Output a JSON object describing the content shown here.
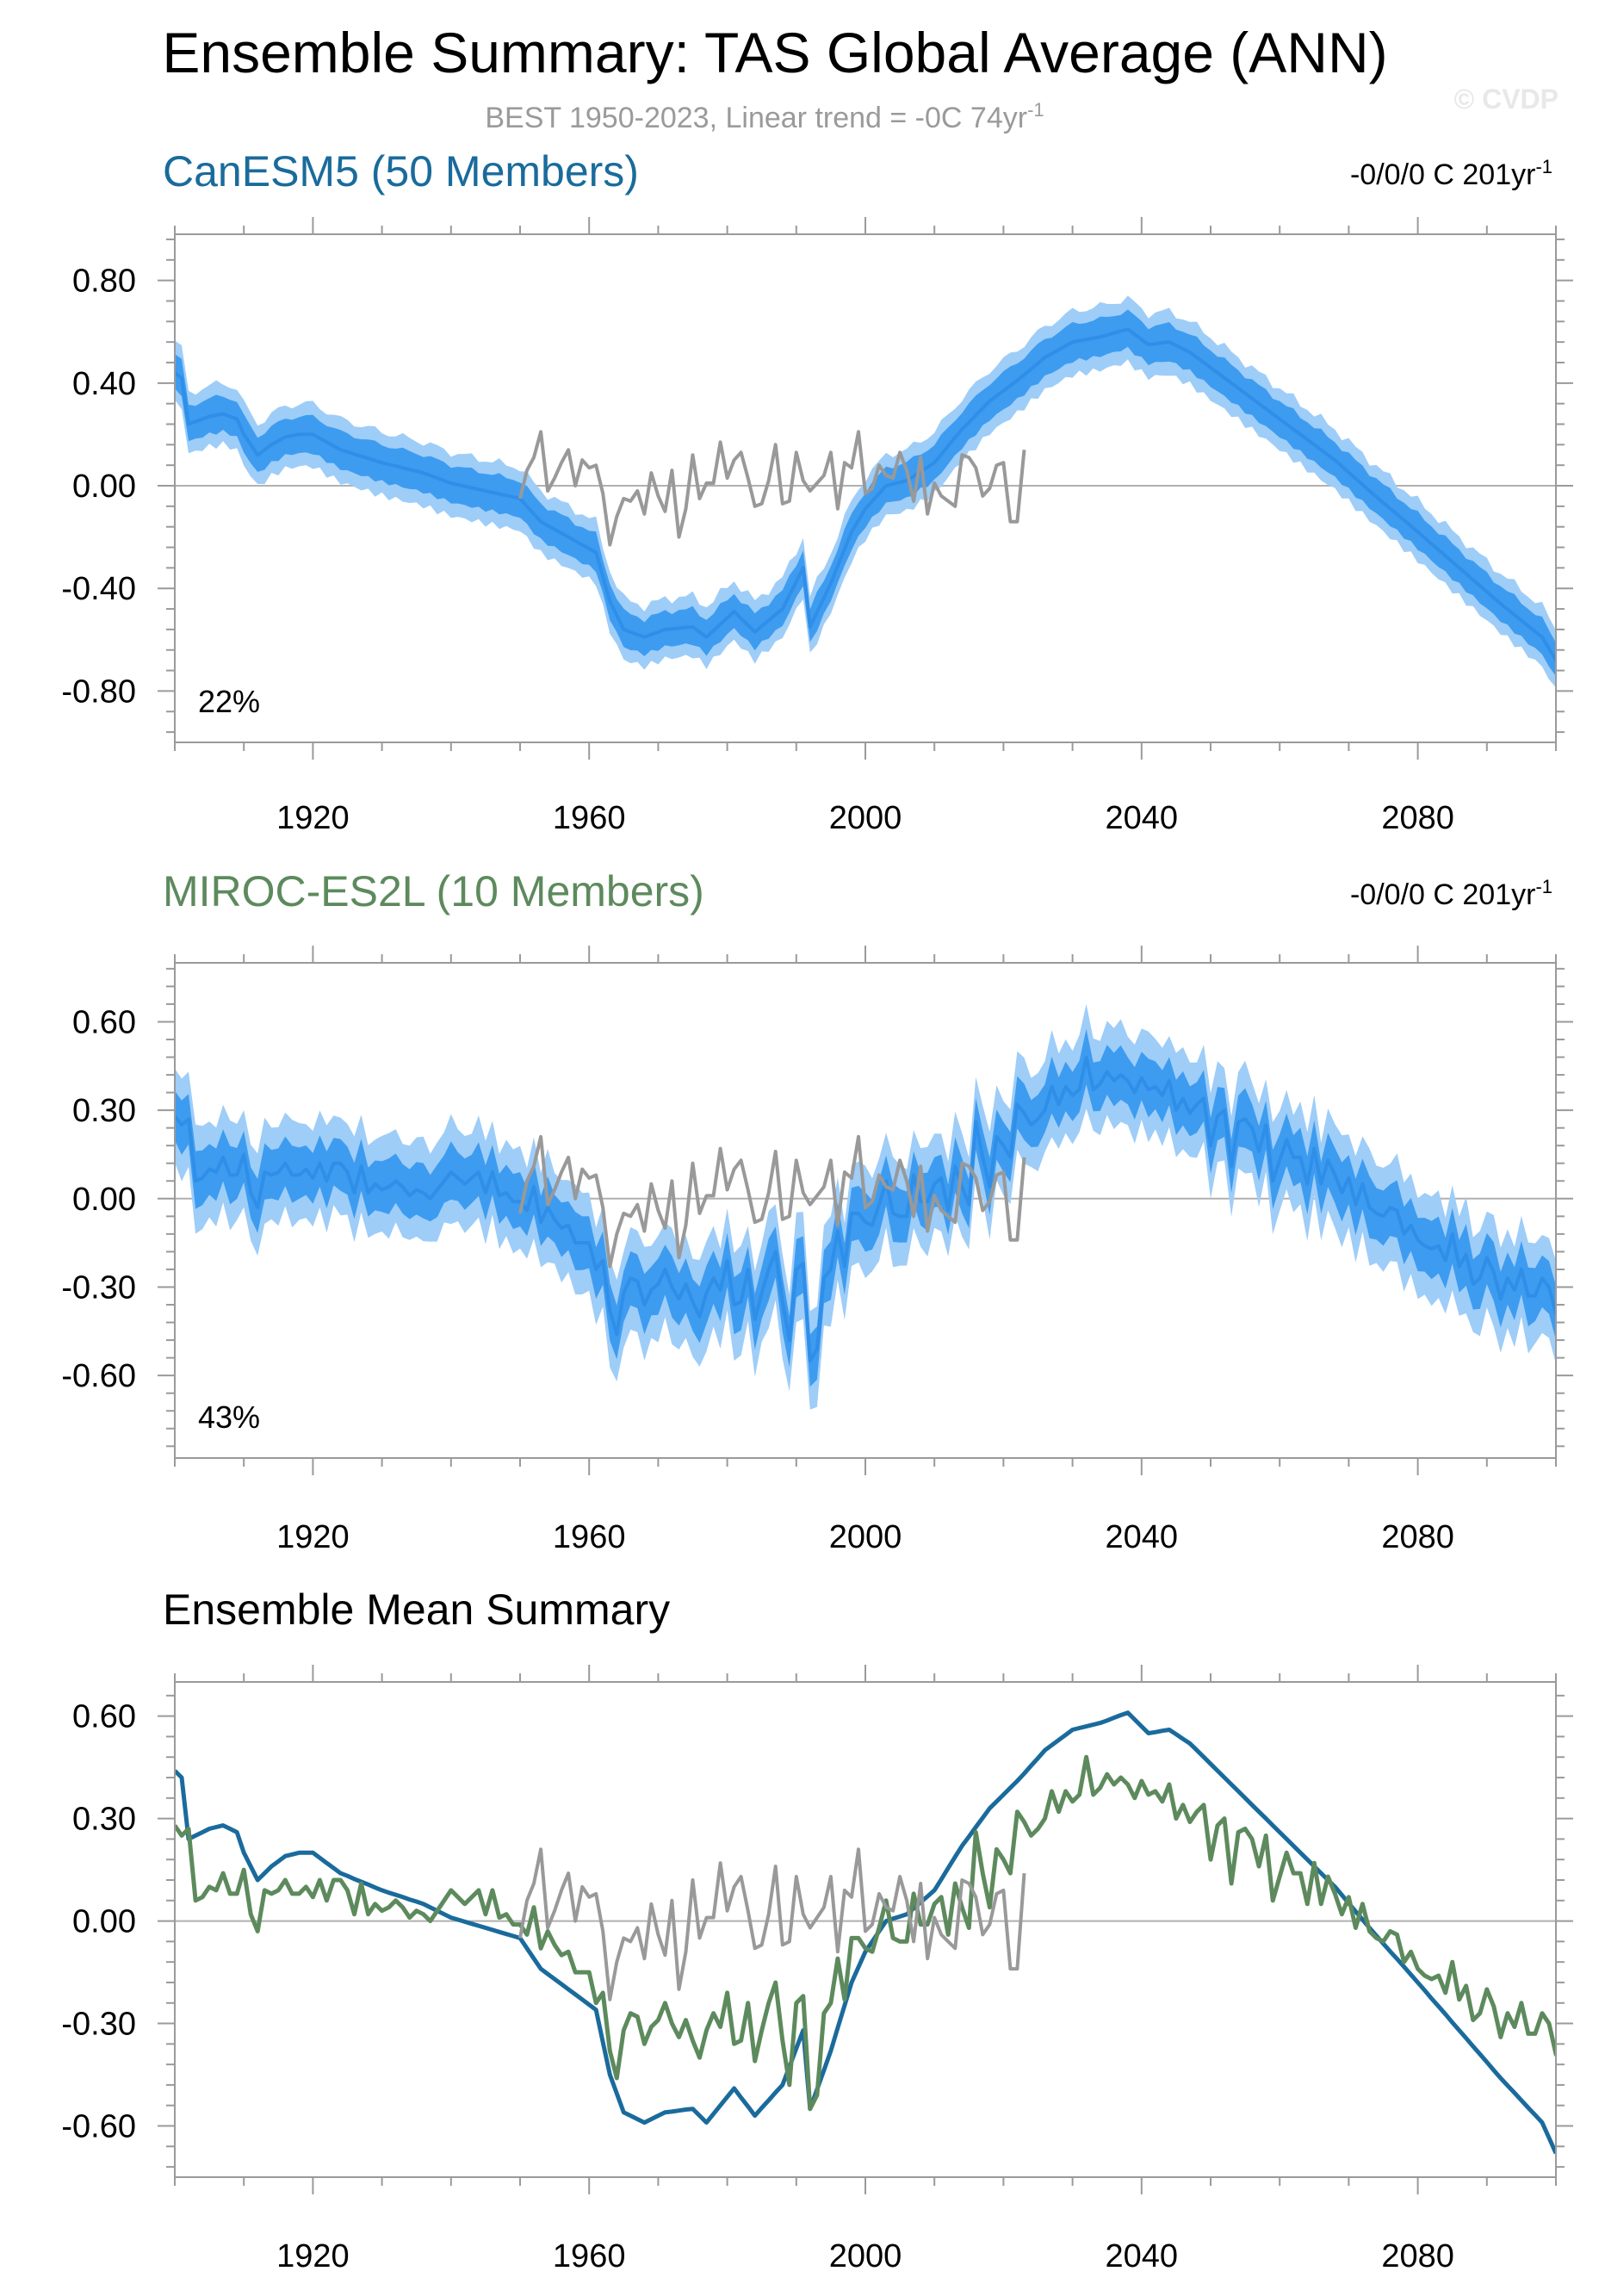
{
  "page": {
    "title": "Ensemble Summary: TAS Global Average (ANN)",
    "subtitle": "BEST 1950-2023, Linear trend = -0C 74yr",
    "subtitle_sup": "-1",
    "copyright": "© CVDP"
  },
  "colors": {
    "canesm5": "#1a6b9c",
    "miroc": "#5d8a5d",
    "obs": "#999999",
    "band_outer": "#9ecdf8",
    "band_inner": "#3d9cf0",
    "ens_mean": "#2f8ee8",
    "zero_line": "#b0b0b0",
    "frame": "#9a9a9a"
  },
  "chart_data": [
    {
      "type": "area",
      "panel_title": "CanESM5 (50 Members)",
      "trend_label": "-0/0/0 C 201yr",
      "trend_sup": "-1",
      "percent_label": "22%",
      "xlim": [
        1900,
        2100
      ],
      "ylim": [
        -1.0,
        0.98
      ],
      "yticks": [
        -0.8,
        -0.4,
        0.0,
        0.4,
        0.8
      ],
      "ytick_labels": [
        "-0.80",
        "-0.40",
        "0.00",
        "0.40",
        "0.80"
      ],
      "xticks": [
        1920,
        1960,
        2000,
        2040,
        2080
      ],
      "xtick_labels": [
        "1920",
        "1960",
        "2000",
        "2040",
        "2080"
      ],
      "series": [
        {
          "role": "ensemble_mean",
          "mean_knots": [
            [
              1900,
              0.44
            ],
            [
              1901,
              0.42
            ],
            [
              1902,
              0.24
            ],
            [
              1903,
              0.25
            ],
            [
              1905,
              0.27
            ],
            [
              1907,
              0.28
            ],
            [
              1909,
              0.26
            ],
            [
              1910,
              0.2
            ],
            [
              1912,
              0.12
            ],
            [
              1914,
              0.16
            ],
            [
              1916,
              0.19
            ],
            [
              1918,
              0.2
            ],
            [
              1920,
              0.2
            ],
            [
              1924,
              0.14
            ],
            [
              1930,
              0.09
            ],
            [
              1936,
              0.05
            ],
            [
              1940,
              0.01
            ],
            [
              1945,
              -0.02
            ],
            [
              1950,
              -0.05
            ],
            [
              1953,
              -0.14
            ],
            [
              1957,
              -0.2
            ],
            [
              1961,
              -0.26
            ],
            [
              1963,
              -0.45
            ],
            [
              1965,
              -0.56
            ],
            [
              1968,
              -0.59
            ],
            [
              1971,
              -0.56
            ],
            [
              1975,
              -0.55
            ],
            [
              1977,
              -0.59
            ],
            [
              1981,
              -0.49
            ],
            [
              1984,
              -0.57
            ],
            [
              1988,
              -0.48
            ],
            [
              1991,
              -0.32
            ],
            [
              1992,
              -0.55
            ],
            [
              1995,
              -0.38
            ],
            [
              1998,
              -0.18
            ],
            [
              2000,
              -0.09
            ],
            [
              2003,
              -0.0
            ],
            [
              2006,
              0.02
            ],
            [
              2010,
              0.09
            ],
            [
              2014,
              0.22
            ],
            [
              2018,
              0.33
            ],
            [
              2022,
              0.41
            ],
            [
              2026,
              0.5
            ],
            [
              2030,
              0.56
            ],
            [
              2034,
              0.58
            ],
            [
              2038,
              0.61
            ],
            [
              2041,
              0.55
            ],
            [
              2044,
              0.56
            ],
            [
              2047,
              0.52
            ],
            [
              2052,
              0.42
            ],
            [
              2058,
              0.3
            ],
            [
              2063,
              0.2
            ],
            [
              2068,
              0.1
            ],
            [
              2073,
              -0.02
            ],
            [
              2080,
              -0.18
            ],
            [
              2086,
              -0.32
            ],
            [
              2092,
              -0.46
            ],
            [
              2098,
              -0.59
            ],
            [
              2100,
              -0.68
            ]
          ],
          "inner_spread": 0.07,
          "outer_spread": 0.12
        },
        {
          "role": "observations",
          "x_start": 1950,
          "values": [
            -0.05,
            0.06,
            0.11,
            0.21,
            -0.02,
            0.03,
            0.09,
            0.14,
            0.0,
            0.1,
            0.07,
            0.08,
            -0.03,
            -0.23,
            -0.12,
            -0.05,
            -0.06,
            -0.02,
            -0.11,
            0.05,
            -0.04,
            -0.1,
            0.06,
            -0.2,
            -0.09,
            0.12,
            -0.05,
            0.01,
            0.01,
            0.17,
            0.03,
            0.1,
            0.13,
            0.03,
            -0.08,
            -0.07,
            0.02,
            0.16,
            -0.07,
            -0.06,
            0.13,
            0.02,
            -0.02,
            0.01,
            0.04,
            0.13,
            -0.09,
            0.09,
            0.07,
            0.21,
            -0.03,
            -0.01,
            0.08,
            0.04,
            0.03,
            0.13,
            0.06,
            -0.06,
            0.11,
            -0.11,
            0.01,
            -0.04,
            -0.06,
            -0.08,
            0.12,
            0.11,
            0.07,
            -0.04,
            -0.01,
            0.08,
            0.09,
            -0.14,
            -0.14,
            0.14
          ]
        }
      ]
    },
    {
      "type": "area",
      "panel_title": "MIROC-ES2L (10 Members)",
      "trend_label": "-0/0/0 C 201yr",
      "trend_sup": "-1",
      "percent_label": "43%",
      "xlim": [
        1900,
        2100
      ],
      "ylim": [
        -0.88,
        0.8
      ],
      "yticks": [
        -0.6,
        -0.3,
        0.0,
        0.3,
        0.6
      ],
      "ytick_labels": [
        "-0.60",
        "-0.30",
        "0.00",
        "0.30",
        "0.60"
      ],
      "xticks": [
        1920,
        1960,
        2000,
        2040,
        2080
      ],
      "xtick_labels": [
        "1920",
        "1960",
        "2000",
        "2040",
        "2080"
      ],
      "series": [
        {
          "role": "ensemble_mean",
          "values": [
            0.28,
            0.25,
            0.27,
            0.06,
            0.07,
            0.1,
            0.09,
            0.14,
            0.08,
            0.08,
            0.15,
            0.02,
            -0.03,
            0.09,
            0.08,
            0.09,
            0.12,
            0.08,
            0.08,
            0.1,
            0.07,
            0.12,
            0.06,
            0.12,
            0.12,
            0.09,
            0.02,
            0.11,
            0.02,
            0.05,
            0.03,
            0.04,
            0.06,
            0.04,
            0.01,
            0.03,
            0.02,
            0.0,
            0.03,
            0.06,
            0.09,
            0.07,
            0.05,
            0.07,
            0.09,
            0.02,
            0.09,
            0.01,
            0.02,
            -0.01,
            -0.01,
            -0.04,
            0.04,
            -0.08,
            -0.03,
            -0.07,
            -0.1,
            -0.09,
            -0.15,
            -0.15,
            -0.15,
            -0.24,
            -0.21,
            -0.38,
            -0.46,
            -0.32,
            -0.27,
            -0.28,
            -0.36,
            -0.31,
            -0.29,
            -0.24,
            -0.3,
            -0.34,
            -0.29,
            -0.35,
            -0.4,
            -0.32,
            -0.27,
            -0.31,
            -0.21,
            -0.36,
            -0.35,
            -0.24,
            -0.41,
            -0.32,
            -0.24,
            -0.18,
            -0.35,
            -0.48,
            -0.24,
            -0.22,
            -0.55,
            -0.51,
            -0.27,
            -0.24,
            -0.11,
            -0.23,
            -0.05,
            -0.05,
            -0.08,
            -0.09,
            -0.02,
            0.06,
            -0.05,
            -0.06,
            -0.06,
            0.08,
            -0.01,
            -0.01,
            0.05,
            0.07,
            -0.04,
            0.11,
            0.04,
            -0.02,
            0.26,
            0.14,
            0.04,
            0.21,
            0.18,
            0.14,
            0.32,
            0.29,
            0.25,
            0.27,
            0.3,
            0.38,
            0.32,
            0.38,
            0.35,
            0.37,
            0.48,
            0.37,
            0.39,
            0.43,
            0.4,
            0.42,
            0.4,
            0.36,
            0.41,
            0.37,
            0.38,
            0.35,
            0.4,
            0.3,
            0.34,
            0.29,
            0.32,
            0.34,
            0.18,
            0.28,
            0.3,
            0.11,
            0.26,
            0.27,
            0.24,
            0.16,
            0.25,
            0.06,
            0.13,
            0.2,
            0.14,
            0.14,
            0.05,
            0.17,
            0.05,
            0.13,
            0.08,
            0.02,
            0.07,
            -0.02,
            0.05,
            -0.03,
            -0.05,
            -0.06,
            -0.03,
            -0.04,
            -0.12,
            -0.09,
            -0.14,
            -0.16,
            -0.17,
            -0.16,
            -0.21,
            -0.12,
            -0.23,
            -0.19,
            -0.29,
            -0.27,
            -0.2,
            -0.25,
            -0.34,
            -0.27,
            -0.31,
            -0.24,
            -0.33,
            -0.33,
            -0.27,
            -0.3,
            -0.39,
            -0.42,
            -0.32,
            -0.43,
            -0.42
          ],
          "inner_spread": 0.09,
          "outer_spread": 0.17
        },
        {
          "role": "observations",
          "x_start": 1950,
          "values": [
            -0.05,
            0.06,
            0.11,
            0.21,
            -0.02,
            0.03,
            0.09,
            0.14,
            0.0,
            0.1,
            0.07,
            0.08,
            -0.03,
            -0.23,
            -0.12,
            -0.05,
            -0.06,
            -0.02,
            -0.11,
            0.05,
            -0.04,
            -0.1,
            0.06,
            -0.2,
            -0.09,
            0.12,
            -0.05,
            0.01,
            0.01,
            0.17,
            0.03,
            0.1,
            0.13,
            0.03,
            -0.08,
            -0.07,
            0.02,
            0.16,
            -0.07,
            -0.06,
            0.13,
            0.02,
            -0.02,
            0.01,
            0.04,
            0.13,
            -0.09,
            0.09,
            0.07,
            0.21,
            -0.03,
            -0.01,
            0.08,
            0.04,
            0.03,
            0.13,
            0.06,
            -0.06,
            0.11,
            -0.11,
            0.01,
            -0.04,
            -0.06,
            -0.08,
            0.12,
            0.11,
            0.07,
            -0.04,
            -0.01,
            0.08,
            0.09,
            -0.14,
            -0.14,
            0.14
          ]
        }
      ]
    },
    {
      "type": "line",
      "panel_title": "Ensemble Mean Summary",
      "xlim": [
        1900,
        2100
      ],
      "ylim": [
        -0.75,
        0.7
      ],
      "yticks": [
        -0.6,
        -0.3,
        0.0,
        0.3,
        0.6
      ],
      "ytick_labels": [
        "-0.60",
        "-0.30",
        "0.00",
        "0.30",
        "0.60"
      ],
      "xticks": [
        1920,
        1960,
        2000,
        2040,
        2080
      ],
      "xtick_labels": [
        "1920",
        "1960",
        "2000",
        "2040",
        "2080"
      ],
      "series": [
        {
          "role": "canesm5_mean",
          "color_key": "canesm5"
        },
        {
          "role": "miroc_mean",
          "color_key": "miroc"
        },
        {
          "role": "observations",
          "color_key": "obs"
        }
      ]
    }
  ]
}
